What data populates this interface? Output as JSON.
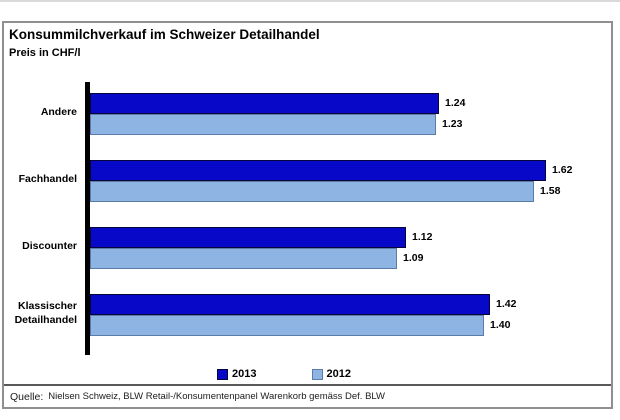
{
  "header": {
    "title": "Konsummilchverkauf im Schweizer Detailhandel",
    "subtitle": "Preis in CHF/l"
  },
  "chart_data": {
    "type": "bar",
    "orientation": "horizontal",
    "title": "Konsummilchverkauf im Schweizer Detailhandel",
    "subtitle": "Preis in CHF/l",
    "categories": [
      "Andere",
      "Fachhandel",
      "Discounter",
      "Klassischer Detailhandel"
    ],
    "series": [
      {
        "name": "2013",
        "color": "#0808c8",
        "values": [
          1.24,
          1.62,
          1.12,
          1.42
        ]
      },
      {
        "name": "2012",
        "color": "#8eb4e3",
        "values": [
          1.23,
          1.58,
          1.09,
          1.4
        ]
      }
    ],
    "xlabel": "",
    "ylabel": "",
    "xlim": [
      0,
      1.87
    ],
    "grid": false,
    "legend_position": "bottom",
    "data_labels": true,
    "value_decimals": 2
  },
  "source": {
    "prefix": "Quelle:",
    "text": "Nielsen Schweiz, BLW Retail-/Konsumentenpanel Warenkorb gemäss Def. BLW"
  }
}
